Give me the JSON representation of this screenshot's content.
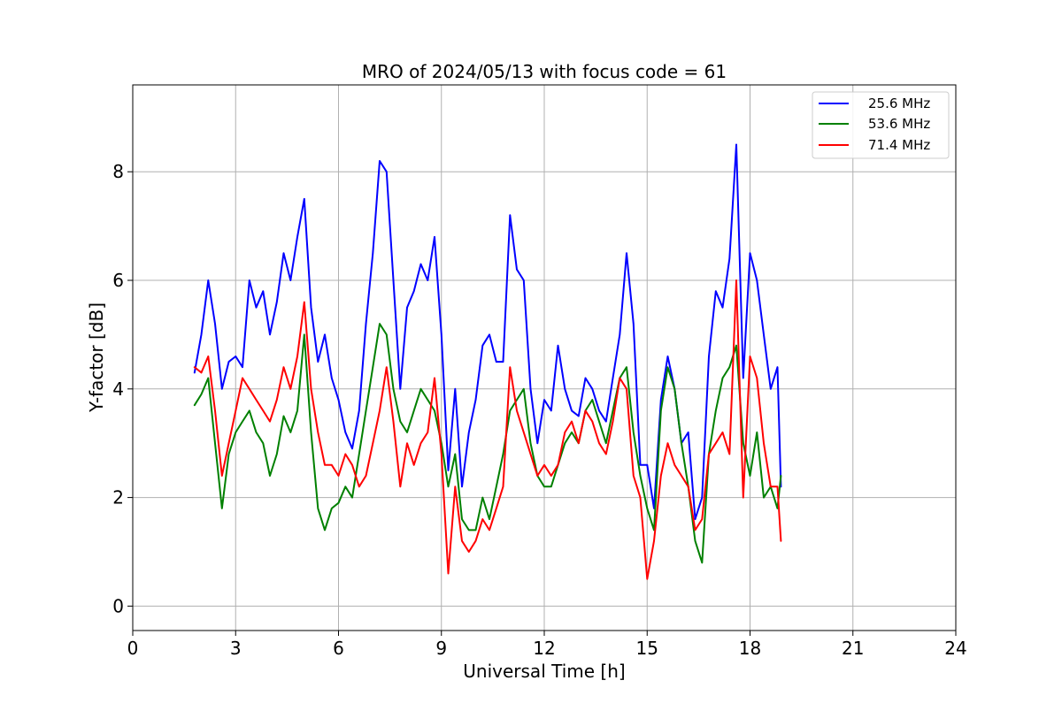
{
  "chart_data": {
    "type": "line",
    "title": "MRO of 2024/05/13 with focus code = 61",
    "xlabel": "Universal Time [h]",
    "ylabel": "Y-factor [dB]",
    "xlim": [
      0,
      24
    ],
    "ylim": [
      -0.45,
      9.6
    ],
    "xticks": [
      0,
      3,
      6,
      9,
      12,
      15,
      18,
      21,
      24
    ],
    "yticks": [
      0,
      2,
      4,
      6,
      8
    ],
    "grid": true,
    "legend_position": "top-right",
    "series": [
      {
        "name": "25.6 MHz",
        "color": "#0000ff",
        "x": [
          1.8,
          2.0,
          2.2,
          2.4,
          2.6,
          2.8,
          3.0,
          3.2,
          3.4,
          3.6,
          3.8,
          4.0,
          4.2,
          4.4,
          4.6,
          4.8,
          5.0,
          5.2,
          5.4,
          5.6,
          5.8,
          6.0,
          6.2,
          6.4,
          6.6,
          6.8,
          7.0,
          7.2,
          7.4,
          7.6,
          7.8,
          8.0,
          8.2,
          8.4,
          8.6,
          8.8,
          9.0,
          9.2,
          9.4,
          9.6,
          9.8,
          10.0,
          10.2,
          10.4,
          10.6,
          10.8,
          11.0,
          11.2,
          11.4,
          11.6,
          11.8,
          12.0,
          12.2,
          12.4,
          12.6,
          12.8,
          13.0,
          13.2,
          13.4,
          13.6,
          13.8,
          14.0,
          14.2,
          14.4,
          14.6,
          14.8,
          15.0,
          15.2,
          15.4,
          15.6,
          15.8,
          16.0,
          16.2,
          16.4,
          16.6,
          16.8,
          17.0,
          17.2,
          17.4,
          17.6,
          17.8,
          18.0,
          18.2,
          18.4,
          18.6,
          18.8,
          18.9
        ],
        "values": [
          4.3,
          5.0,
          6.0,
          5.2,
          4.0,
          4.5,
          4.6,
          4.4,
          6.0,
          5.5,
          5.8,
          5.0,
          5.6,
          6.5,
          6.0,
          6.8,
          7.5,
          5.5,
          4.5,
          5.0,
          4.2,
          3.8,
          3.2,
          2.9,
          3.6,
          5.2,
          6.5,
          8.2,
          8.0,
          6.0,
          4.0,
          5.5,
          5.8,
          6.3,
          6.0,
          6.8,
          5.0,
          2.5,
          4.0,
          2.2,
          3.2,
          3.8,
          4.8,
          5.0,
          4.5,
          4.5,
          7.2,
          6.2,
          6.0,
          4.0,
          3.0,
          3.8,
          3.6,
          4.8,
          4.0,
          3.6,
          3.5,
          4.2,
          4.0,
          3.6,
          3.4,
          4.2,
          5.0,
          6.5,
          5.2,
          2.6,
          2.6,
          1.8,
          3.8,
          4.6,
          4.0,
          3.0,
          3.2,
          1.6,
          2.0,
          4.6,
          5.8,
          5.5,
          6.4,
          8.5,
          4.2,
          6.5,
          6.0,
          5.0,
          4.0,
          4.4,
          2.2
        ]
      },
      {
        "name": "53.6 MHz",
        "color": "#008000",
        "x": [
          1.8,
          2.0,
          2.2,
          2.4,
          2.6,
          2.8,
          3.0,
          3.2,
          3.4,
          3.6,
          3.8,
          4.0,
          4.2,
          4.4,
          4.6,
          4.8,
          5.0,
          5.2,
          5.4,
          5.6,
          5.8,
          6.0,
          6.2,
          6.4,
          6.6,
          6.8,
          7.0,
          7.2,
          7.4,
          7.6,
          7.8,
          8.0,
          8.2,
          8.4,
          8.6,
          8.8,
          9.0,
          9.2,
          9.4,
          9.6,
          9.8,
          10.0,
          10.2,
          10.4,
          10.6,
          10.8,
          11.0,
          11.2,
          11.4,
          11.6,
          11.8,
          12.0,
          12.2,
          12.4,
          12.6,
          12.8,
          13.0,
          13.2,
          13.4,
          13.6,
          13.8,
          14.0,
          14.2,
          14.4,
          14.6,
          14.8,
          15.0,
          15.2,
          15.4,
          15.6,
          15.8,
          16.0,
          16.2,
          16.4,
          16.6,
          16.8,
          17.0,
          17.2,
          17.4,
          17.6,
          17.8,
          18.0,
          18.2,
          18.4,
          18.6,
          18.8,
          18.9
        ],
        "values": [
          3.7,
          3.9,
          4.2,
          3.0,
          1.8,
          2.8,
          3.2,
          3.4,
          3.6,
          3.2,
          3.0,
          2.4,
          2.8,
          3.5,
          3.2,
          3.6,
          5.0,
          3.2,
          1.8,
          1.4,
          1.8,
          1.9,
          2.2,
          2.0,
          2.8,
          3.6,
          4.4,
          5.2,
          5.0,
          4.0,
          3.4,
          3.2,
          3.6,
          4.0,
          3.8,
          3.6,
          3.0,
          2.2,
          2.8,
          1.6,
          1.4,
          1.4,
          2.0,
          1.6,
          2.2,
          2.8,
          3.6,
          3.8,
          4.0,
          3.0,
          2.4,
          2.2,
          2.2,
          2.6,
          3.0,
          3.2,
          3.0,
          3.6,
          3.8,
          3.4,
          3.0,
          3.6,
          4.2,
          4.4,
          3.2,
          2.4,
          1.8,
          1.4,
          3.6,
          4.4,
          4.0,
          3.0,
          2.2,
          1.2,
          0.8,
          2.8,
          3.6,
          4.2,
          4.4,
          4.8,
          3.0,
          2.4,
          3.2,
          2.0,
          2.2,
          1.8,
          2.4
        ]
      },
      {
        "name": "71.4 MHz",
        "color": "#ff0000",
        "x": [
          1.8,
          2.0,
          2.2,
          2.4,
          2.6,
          2.8,
          3.0,
          3.2,
          3.4,
          3.6,
          3.8,
          4.0,
          4.2,
          4.4,
          4.6,
          4.8,
          5.0,
          5.2,
          5.4,
          5.6,
          5.8,
          6.0,
          6.2,
          6.4,
          6.6,
          6.8,
          7.0,
          7.2,
          7.4,
          7.6,
          7.8,
          8.0,
          8.2,
          8.4,
          8.6,
          8.8,
          9.0,
          9.2,
          9.4,
          9.6,
          9.8,
          10.0,
          10.2,
          10.4,
          10.6,
          10.8,
          11.0,
          11.2,
          11.4,
          11.6,
          11.8,
          12.0,
          12.2,
          12.4,
          12.6,
          12.8,
          13.0,
          13.2,
          13.4,
          13.6,
          13.8,
          14.0,
          14.2,
          14.4,
          14.6,
          14.8,
          15.0,
          15.2,
          15.4,
          15.6,
          15.8,
          16.0,
          16.2,
          16.4,
          16.6,
          16.8,
          17.0,
          17.2,
          17.4,
          17.6,
          17.8,
          18.0,
          18.2,
          18.4,
          18.6,
          18.8,
          18.9
        ],
        "values": [
          4.4,
          4.3,
          4.6,
          3.6,
          2.4,
          3.0,
          3.6,
          4.2,
          4.0,
          3.8,
          3.6,
          3.4,
          3.8,
          4.4,
          4.0,
          4.6,
          5.6,
          4.0,
          3.2,
          2.6,
          2.6,
          2.4,
          2.8,
          2.6,
          2.2,
          2.4,
          3.0,
          3.6,
          4.4,
          3.4,
          2.2,
          3.0,
          2.6,
          3.0,
          3.2,
          4.2,
          2.8,
          0.6,
          2.2,
          1.2,
          1.0,
          1.2,
          1.6,
          1.4,
          1.8,
          2.2,
          4.4,
          3.6,
          3.2,
          2.8,
          2.4,
          2.6,
          2.4,
          2.6,
          3.2,
          3.4,
          3.0,
          3.6,
          3.4,
          3.0,
          2.8,
          3.4,
          4.2,
          4.0,
          2.4,
          2.0,
          0.5,
          1.2,
          2.4,
          3.0,
          2.6,
          2.4,
          2.2,
          1.4,
          1.6,
          2.8,
          3.0,
          3.2,
          2.8,
          6.0,
          2.0,
          4.6,
          4.2,
          3.0,
          2.2,
          2.2,
          1.2
        ]
      }
    ]
  }
}
